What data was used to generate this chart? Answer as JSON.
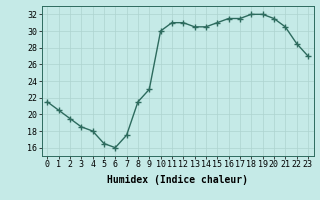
{
  "x": [
    0,
    1,
    2,
    3,
    4,
    5,
    6,
    7,
    8,
    9,
    10,
    11,
    12,
    13,
    14,
    15,
    16,
    17,
    18,
    19,
    20,
    21,
    22,
    23
  ],
  "y": [
    21.5,
    20.5,
    19.5,
    18.5,
    18.0,
    16.5,
    16.0,
    17.5,
    21.5,
    23.0,
    30.0,
    31.0,
    31.0,
    30.5,
    30.5,
    31.0,
    31.5,
    31.5,
    32.0,
    32.0,
    31.5,
    30.5,
    28.5,
    27.0
  ],
  "xlabel": "Humidex (Indice chaleur)",
  "ylim": [
    15,
    33
  ],
  "xlim": [
    -0.5,
    23.5
  ],
  "yticks": [
    16,
    18,
    20,
    22,
    24,
    26,
    28,
    30,
    32
  ],
  "xticks": [
    0,
    1,
    2,
    3,
    4,
    5,
    6,
    7,
    8,
    9,
    10,
    11,
    12,
    13,
    14,
    15,
    16,
    17,
    18,
    19,
    20,
    21,
    22,
    23
  ],
  "line_color": "#2d6b5e",
  "marker": "+",
  "marker_size": 4,
  "bg_color": "#c5eae7",
  "grid_color": "#aed4d0",
  "line_width": 1.0,
  "xlabel_fontsize": 7,
  "tick_fontsize": 6,
  "grid_linewidth": 0.5
}
